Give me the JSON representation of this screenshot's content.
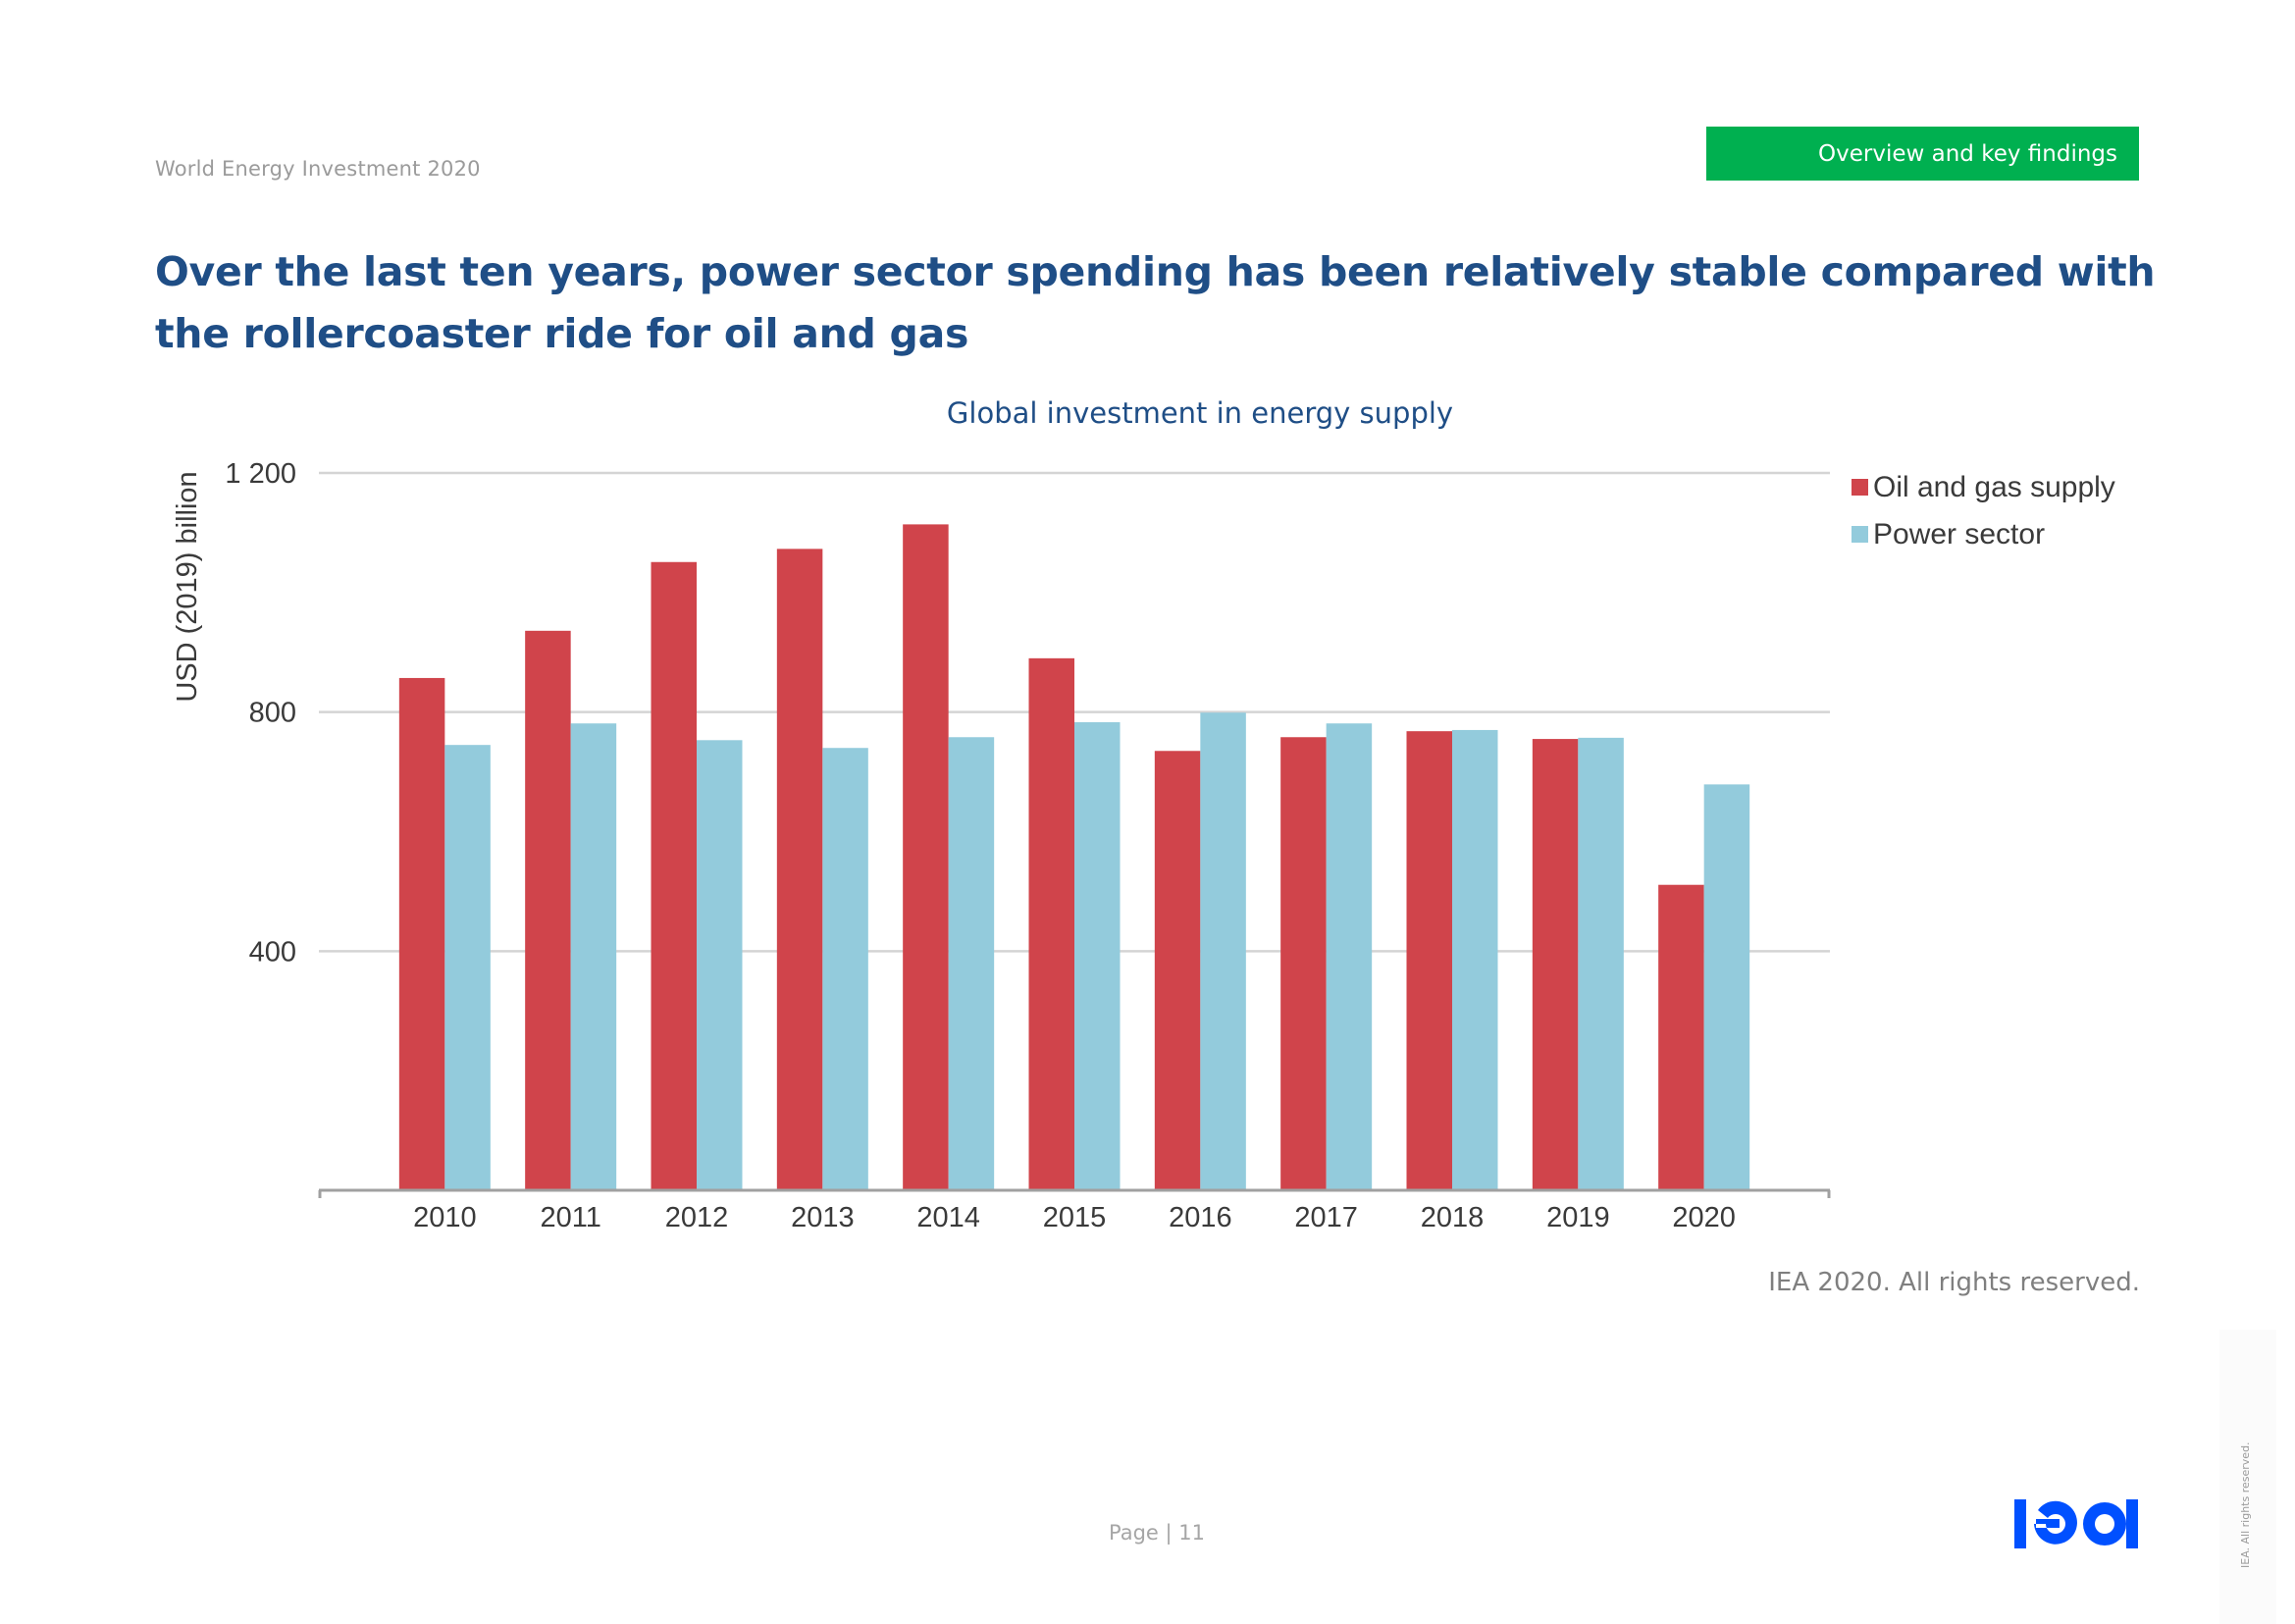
{
  "header": {
    "doc_title": "World Energy Investment 2020",
    "section_tab": "Overview and key findings",
    "section_tab_color": "#00b050"
  },
  "headline": "Over the last ten years, power sector spending has been relatively stable compared with the rollercoaster ride for oil and gas",
  "footer": {
    "copyright": "IEA 2020. All rights reserved.",
    "page_label": "Page | 11",
    "logo_text": "iea",
    "logo_color": "#0050ff",
    "side_rights": "IEA. All rights reserved."
  },
  "chart_data": {
    "type": "bar",
    "title": "Global investment in energy supply",
    "xlabel": "",
    "ylabel": "USD (2019) billion",
    "ylim": [
      0,
      1200
    ],
    "yticks": [
      400,
      800,
      1200
    ],
    "ytick_labels": [
      "400",
      "800",
      "1 200"
    ],
    "grid": true,
    "legend_position": "right-top",
    "categories": [
      "2010",
      "2011",
      "2012",
      "2013",
      "2014",
      "2015",
      "2016",
      "2017",
      "2018",
      "2019",
      "2020"
    ],
    "series": [
      {
        "name": "Oil and gas supply",
        "color": "#d0444b",
        "values": [
          857,
          936,
          1051,
          1073,
          1114,
          890,
          735,
          758,
          768,
          755,
          511
        ]
      },
      {
        "name": "Power sector",
        "color": "#93cbdc",
        "values": [
          745,
          781,
          753,
          740,
          758,
          783,
          799,
          781,
          770,
          757,
          679
        ]
      }
    ]
  }
}
